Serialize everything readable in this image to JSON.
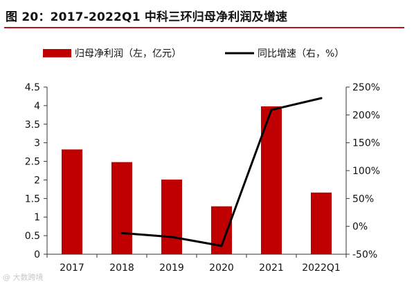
{
  "header": {
    "title": "图 20：2017-2022Q1 中科三环归母净利润及增速"
  },
  "watermark": "@ 大数跨境",
  "colors": {
    "bar": "#c00000",
    "line": "#000000",
    "rule": "#b5121b"
  },
  "chart_data": {
    "type": "bar",
    "categories": [
      "2017",
      "2018",
      "2019",
      "2020",
      "2021",
      "2022Q1"
    ],
    "series": [
      {
        "name": "归母净利润（左，亿元）",
        "type": "bar",
        "axis": "left",
        "values": [
          2.82,
          2.48,
          2.01,
          1.29,
          3.98,
          1.66
        ]
      },
      {
        "name": "同比增速（右，%）",
        "type": "line",
        "axis": "right",
        "values": [
          null,
          -12,
          -19,
          -35,
          209,
          230
        ]
      }
    ],
    "left_axis": {
      "range": [
        0,
        4.5
      ],
      "ticks": [
        "0",
        "0.5",
        "1",
        "1.5",
        "2",
        "2.5",
        "3",
        "3.5",
        "4",
        "4.5"
      ]
    },
    "right_axis": {
      "range": [
        -50,
        250
      ],
      "ticks": [
        "-50%",
        "0%",
        "50%",
        "100%",
        "150%",
        "200%",
        "250%"
      ]
    },
    "legend": "top",
    "grid": false
  }
}
